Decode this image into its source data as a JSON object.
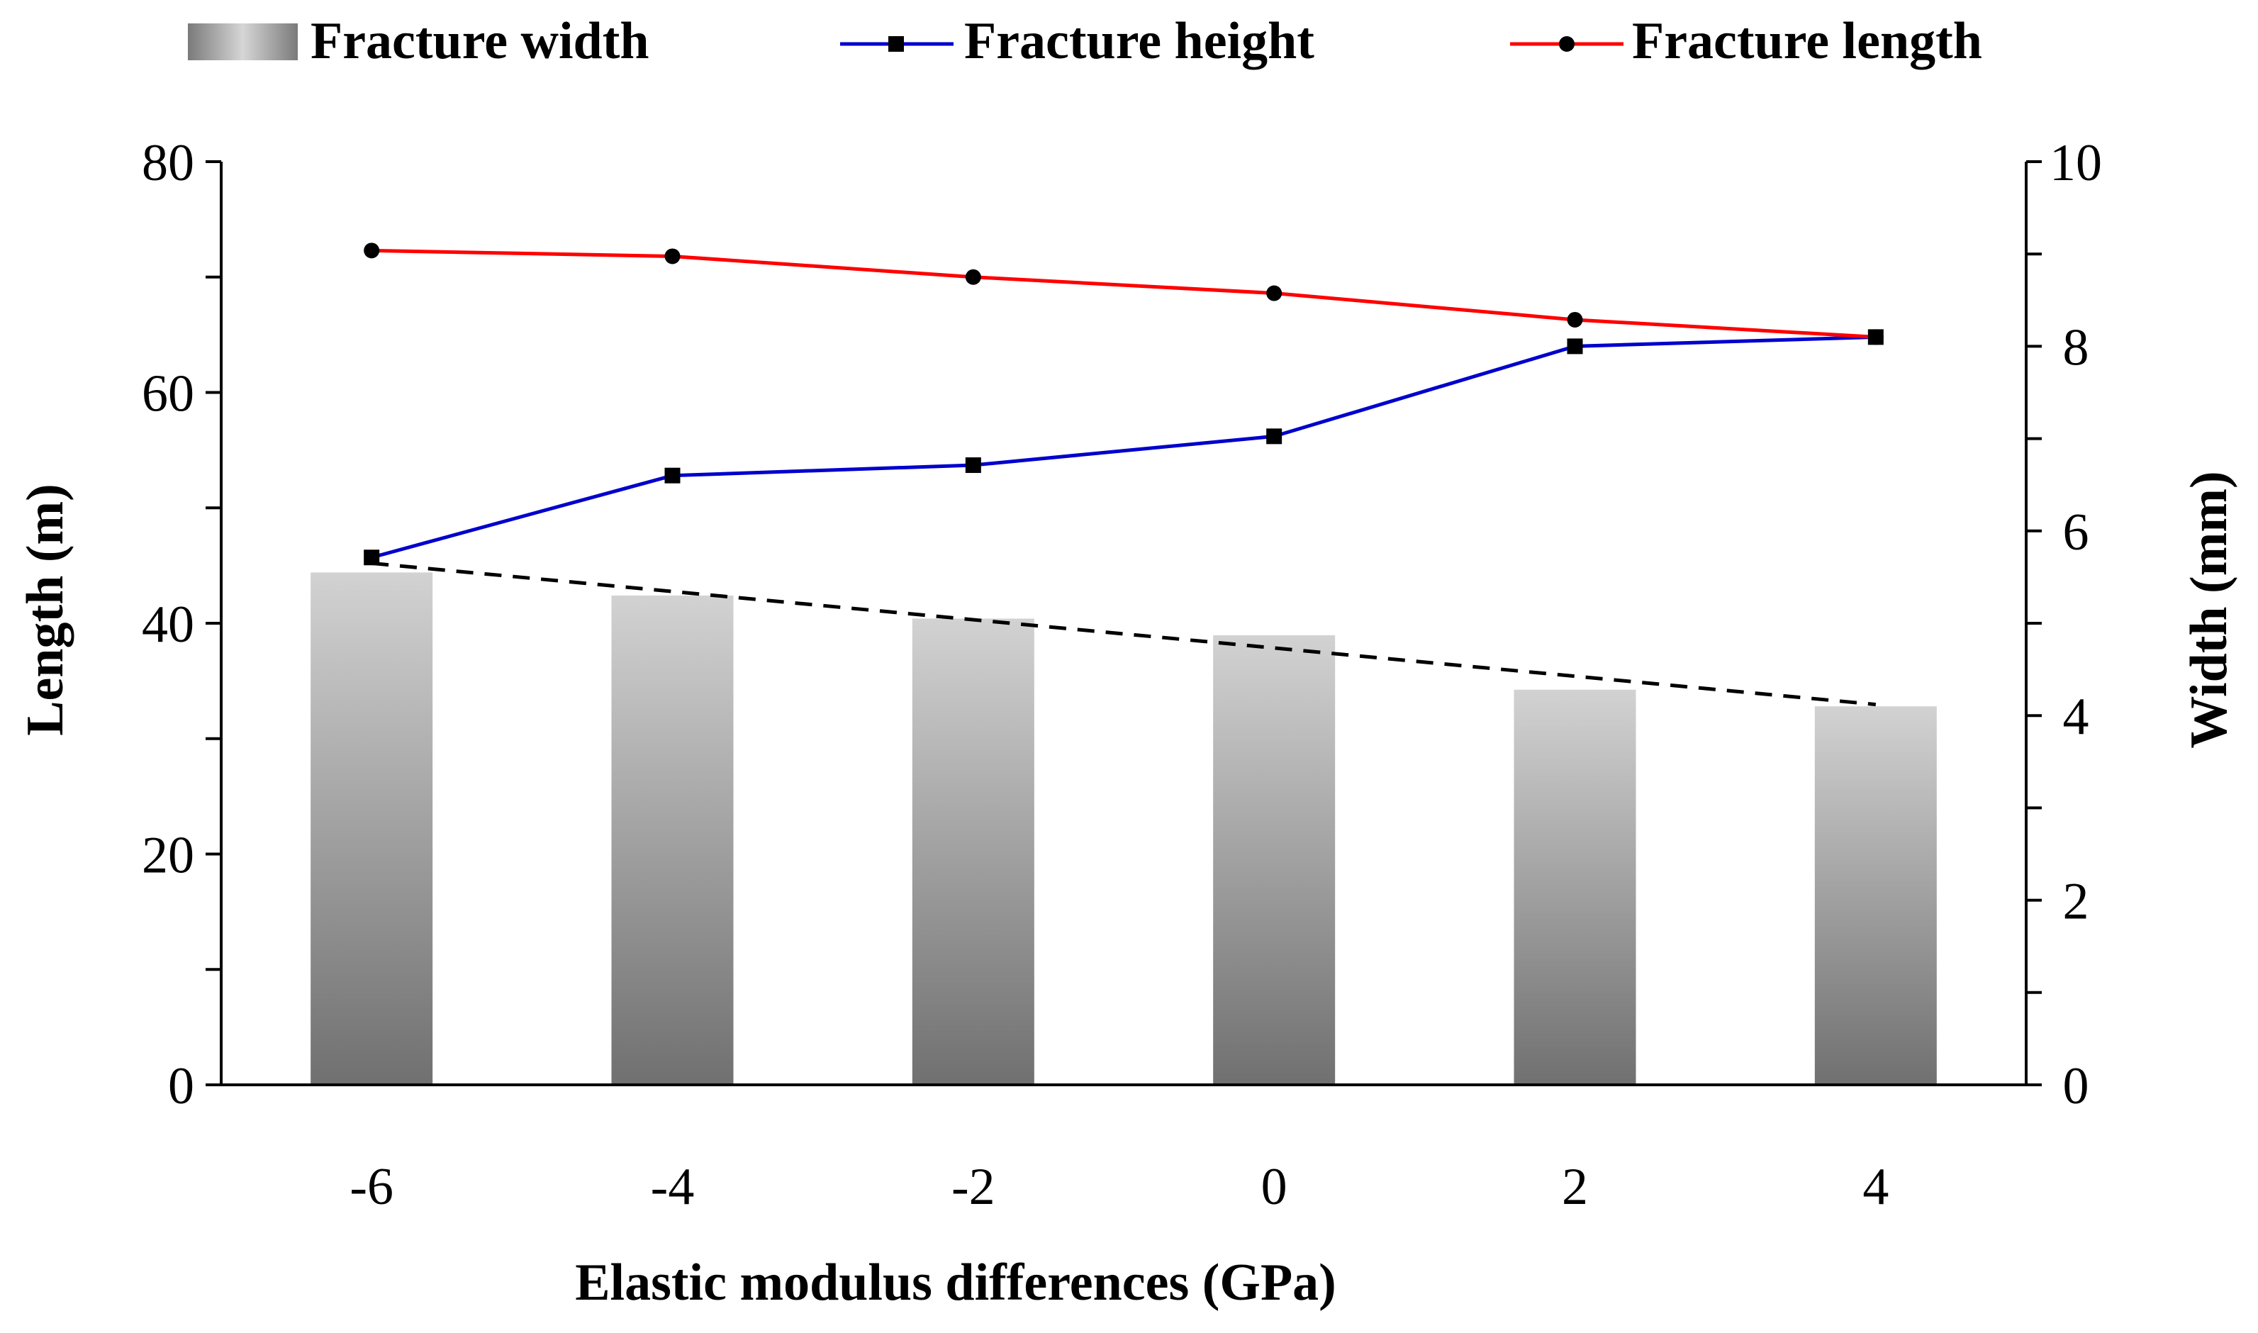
{
  "chart_data": {
    "type": "bar+line",
    "title": "",
    "xlabel": "Elastic modulus differences (GPa)",
    "ylabel_left": "Length (m)",
    "ylabel_right": "Width (mm)",
    "ylim_left": [
      0,
      80
    ],
    "ylim_right": [
      0,
      10
    ],
    "yticks_left": [
      0,
      20,
      40,
      60,
      80
    ],
    "yticks_right": [
      0,
      2,
      4,
      6,
      8,
      10
    ],
    "categories": [
      "-6",
      "-4",
      "-2",
      "0",
      "2",
      "4"
    ],
    "legend_position": "top",
    "series": [
      {
        "name": "Fracture width",
        "kind": "bar",
        "axis": "right",
        "values": [
          5.55,
          5.3,
          5.05,
          4.87,
          4.28,
          4.1
        ],
        "color": "#999999"
      },
      {
        "name": "Fracture height",
        "kind": "line",
        "axis": "left",
        "marker": "square",
        "values": [
          45.7,
          52.8,
          53.7,
          56.2,
          64.0,
          64.8
        ],
        "color": "#0000cc"
      },
      {
        "name": "Fracture length",
        "kind": "line",
        "axis": "left",
        "marker": "circle",
        "values": [
          72.3,
          71.8,
          70.0,
          68.6,
          66.3,
          64.8
        ],
        "color": "#ff0000"
      }
    ],
    "trendline": {
      "of": "Fracture width",
      "axis": "right",
      "style": "dashed",
      "color": "#000000",
      "start": 5.65,
      "end": 4.12
    }
  }
}
